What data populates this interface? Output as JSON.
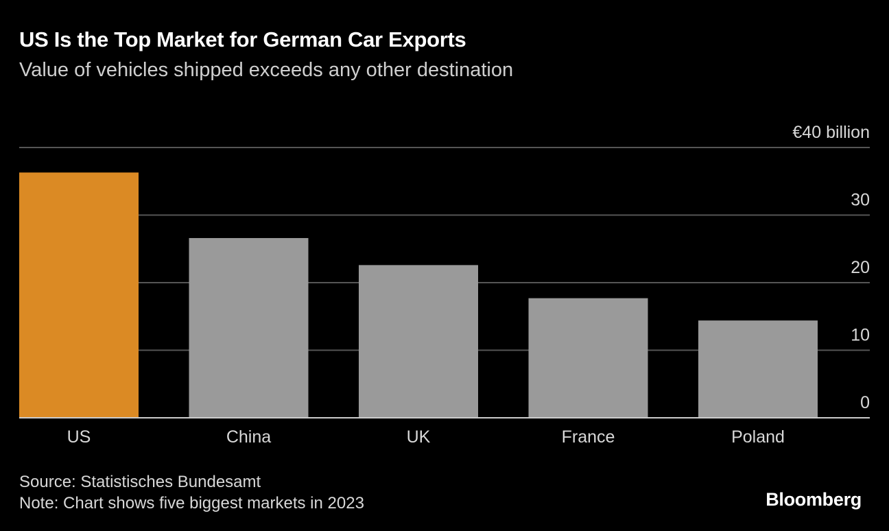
{
  "header": {
    "title": "US Is the Top Market for German Car Exports",
    "subtitle": "Value of vehicles shipped exceeds any other destination"
  },
  "footer": {
    "source": "Source: Statistisches Bundesamt",
    "note": "Note: Chart shows five biggest markets in 2023",
    "logo": "Bloomberg"
  },
  "colors": {
    "highlight": "#db8a24",
    "bar": "#9a9a9a",
    "grid": "#555555",
    "baseline": "#cccccc"
  },
  "chart_data": {
    "type": "bar",
    "title": "US Is the Top Market for German Car Exports",
    "subtitle": "Value of vehicles shipped exceeds any other destination",
    "categories": [
      "US",
      "China",
      "UK",
      "France",
      "Poland"
    ],
    "values": [
      36.3,
      26.6,
      22.6,
      17.7,
      14.4
    ],
    "highlight_index": 0,
    "ylabel": "",
    "ylim": [
      0,
      40
    ],
    "yticks": [
      0,
      10,
      20,
      30,
      40
    ],
    "ytick_labels": [
      "0",
      "10",
      "20",
      "30",
      "€40 billion"
    ],
    "grid": true,
    "axis_position": "right"
  }
}
